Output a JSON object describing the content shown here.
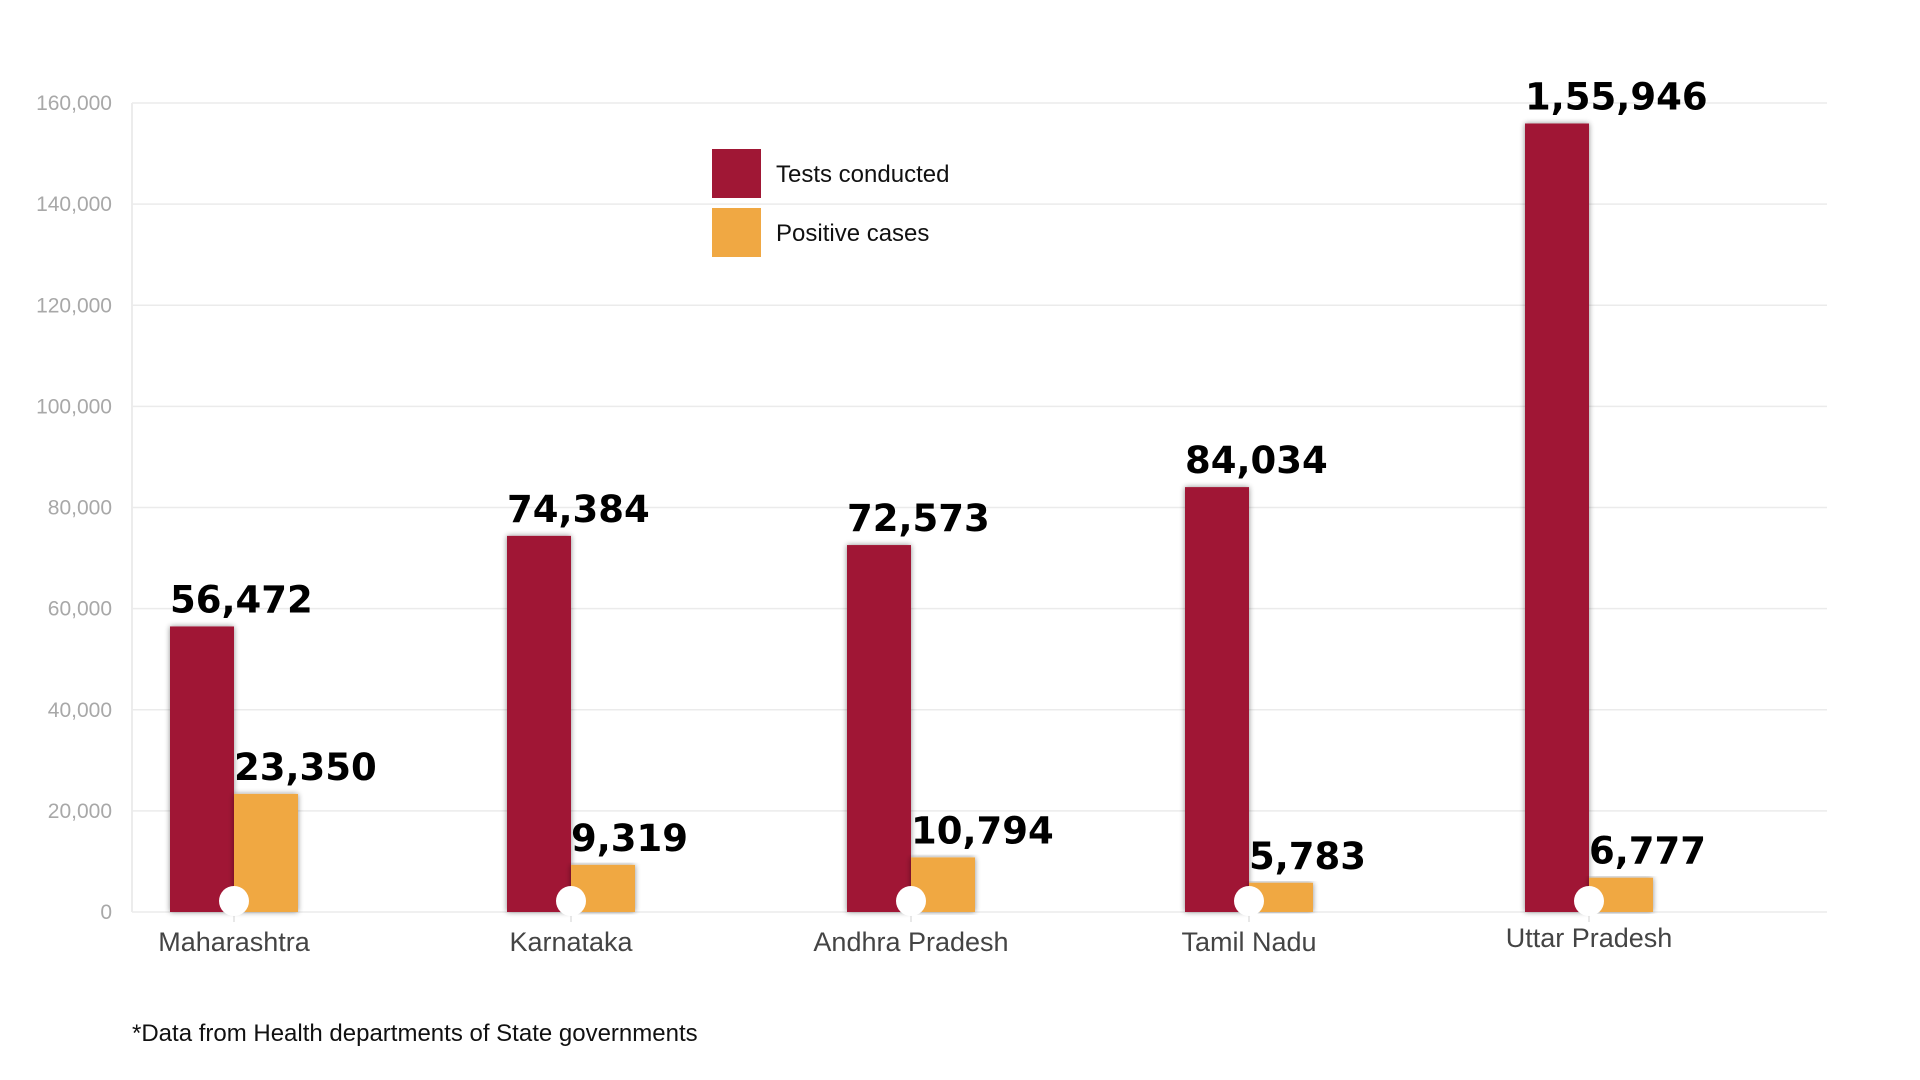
{
  "chart_data": {
    "type": "bar",
    "title": "",
    "xlabel": "",
    "ylabel": "",
    "categories": [
      "Maharashtra",
      "Karnataka",
      "Andhra Pradesh",
      "Tamil Nadu",
      "Uttar Pradesh"
    ],
    "series": [
      {
        "name": "Tests conducted",
        "color": "#a01735",
        "values": [
          56472,
          74384,
          72573,
          84034,
          155946
        ],
        "labels": [
          "56,472",
          "74,384",
          "72,573",
          "84,034",
          "1,55,946"
        ]
      },
      {
        "name": "Positive cases",
        "color": "#f0a843",
        "values": [
          23350,
          9319,
          10794,
          5783,
          6777
        ],
        "labels": [
          "23,350",
          "9,319",
          "10,794",
          "5,783",
          "6,777"
        ]
      }
    ],
    "ylim": [
      0,
      160000
    ],
    "yticks": [
      0,
      20000,
      40000,
      60000,
      80000,
      100000,
      120000,
      140000,
      160000
    ],
    "ytick_labels": [
      "0",
      "20,000",
      "40,000",
      "60,000",
      "80,000",
      "100,000",
      "120,000",
      "140,000",
      "160,000"
    ],
    "grid": true,
    "legend_position": "top-center"
  },
  "footnote": "*Data from Health departments of State governments"
}
